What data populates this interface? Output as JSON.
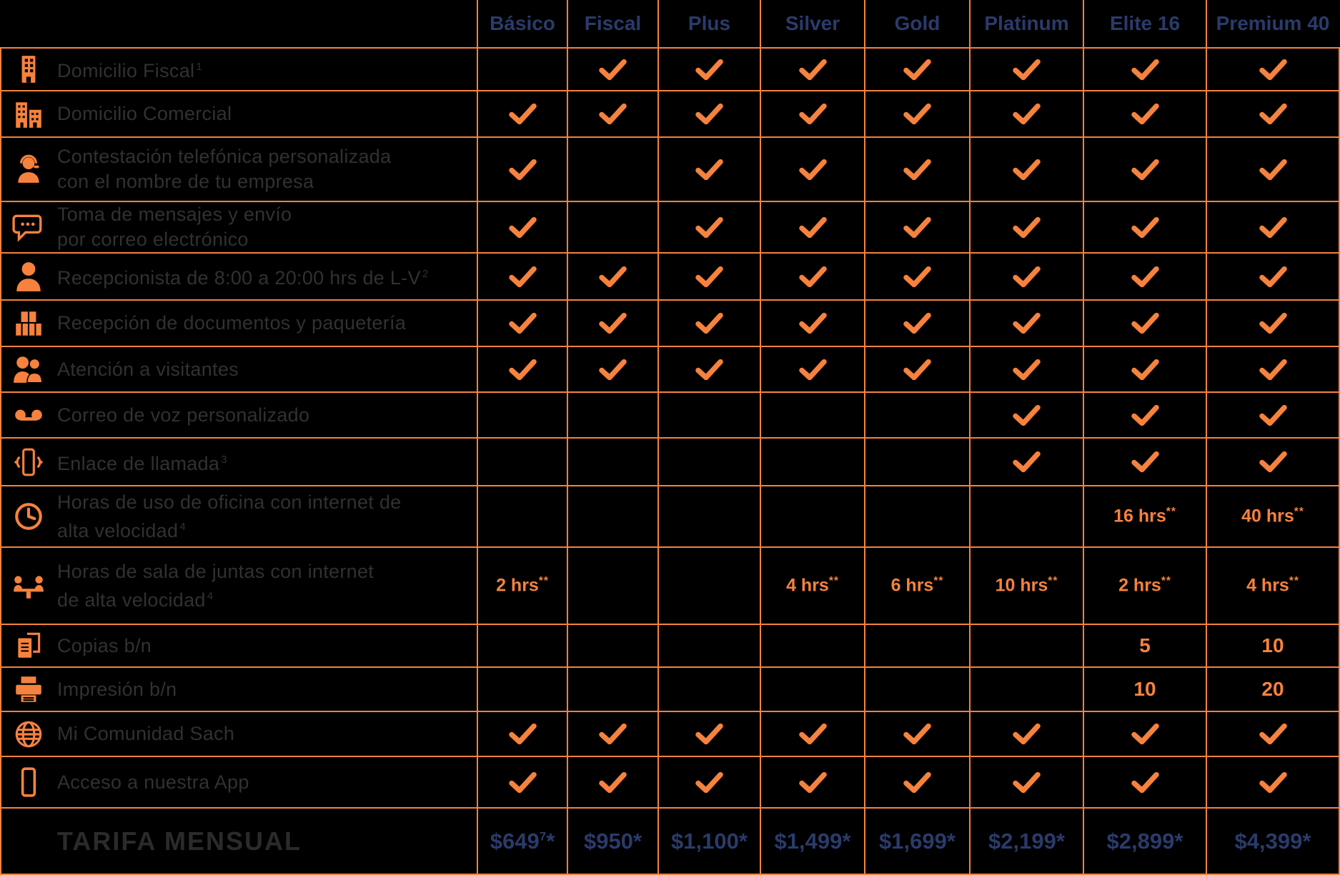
{
  "colors": {
    "accent_orange": "#F6823D",
    "header_navy": "#2A3B6B",
    "label_gray": "#313131",
    "tarifa_gray": "#2B2B2B",
    "background": "#000000"
  },
  "table": {
    "plans": [
      "Básico",
      "Fiscal",
      "Plus",
      "Silver",
      "Gold",
      "Platinum",
      "Elite 16",
      "Premium 40"
    ],
    "rows": [
      {
        "icon": "building-icon",
        "lines": [
          "Domicilio Fiscal"
        ],
        "sup": "1",
        "cells": [
          "",
          "check",
          "check",
          "check",
          "check",
          "check",
          "check",
          "check"
        ]
      },
      {
        "icon": "city-buildings-icon",
        "lines": [
          "Domicilio Comercial"
        ],
        "cells": [
          "check",
          "check",
          "check",
          "check",
          "check",
          "check",
          "check",
          "check"
        ]
      },
      {
        "icon": "operator-headset-icon",
        "lines": [
          "Contestación telefónica personalizada",
          "con el nombre de tu empresa"
        ],
        "cells": [
          "check",
          "",
          "check",
          "check",
          "check",
          "check",
          "check",
          "check"
        ]
      },
      {
        "icon": "chat-message-icon",
        "lines": [
          "Toma de mensajes y envío",
          "por correo electrónico"
        ],
        "cells": [
          "check",
          "",
          "check",
          "check",
          "check",
          "check",
          "check",
          "check"
        ]
      },
      {
        "icon": "receptionist-icon",
        "lines": [
          "Recepcionista de 8:00 a 20:00 hrs de L-V"
        ],
        "sup": "2",
        "cells": [
          "check",
          "check",
          "check",
          "check",
          "check",
          "check",
          "check",
          "check"
        ]
      },
      {
        "icon": "packages-icon",
        "lines": [
          "Recepción de documentos y paquetería"
        ],
        "cells": [
          "check",
          "check",
          "check",
          "check",
          "check",
          "check",
          "check",
          "check"
        ]
      },
      {
        "icon": "visitors-icon",
        "lines": [
          "Atención a visitantes"
        ],
        "cells": [
          "check",
          "check",
          "check",
          "check",
          "check",
          "check",
          "check",
          "check"
        ]
      },
      {
        "icon": "voicemail-icon",
        "lines": [
          "Correo de voz personalizado"
        ],
        "cells": [
          "",
          "",
          "",
          "",
          "",
          "check",
          "check",
          "check"
        ]
      },
      {
        "icon": "phone-vibrate-icon",
        "lines": [
          "Enlace de llamada"
        ],
        "sup": "3",
        "cells": [
          "",
          "",
          "",
          "",
          "",
          "check",
          "check",
          "check"
        ]
      },
      {
        "icon": "clock-icon",
        "lines": [
          "Horas de uso de oficina con internet de",
          "alta velocidad"
        ],
        "sup": "4",
        "cells": [
          "",
          "",
          "",
          "",
          "",
          "",
          "16 hrs**",
          "40 hrs**"
        ]
      },
      {
        "icon": "meeting-room-icon",
        "lines": [
          "Horas de sala de juntas con internet",
          "de alta velocidad"
        ],
        "sup": "4",
        "cells": [
          "2 hrs**",
          "",
          "",
          "4 hrs**",
          "6 hrs**",
          "10 hrs**",
          "2 hrs**",
          "4 hrs**"
        ]
      },
      {
        "icon": "copies-icon",
        "lines": [
          "Copias b/n"
        ],
        "cells": [
          "",
          "",
          "",
          "",
          "",
          "",
          "5",
          "10"
        ]
      },
      {
        "icon": "printer-icon",
        "lines": [
          "Impresión b/n"
        ],
        "cells": [
          "",
          "",
          "",
          "",
          "",
          "",
          "10",
          "20"
        ]
      },
      {
        "icon": "globe-icon",
        "lines": [
          "Mi Comunidad Sach"
        ],
        "cells": [
          "check",
          "check",
          "check",
          "check",
          "check",
          "check",
          "check",
          "check"
        ]
      },
      {
        "icon": "smartphone-icon",
        "lines": [
          "Acceso a nuestra App"
        ],
        "cells": [
          "check",
          "check",
          "check",
          "check",
          "check",
          "check",
          "check",
          "check"
        ]
      }
    ],
    "footer": {
      "label": "TARIFA MENSUAL",
      "prices": [
        {
          "amount": "$649",
          "note": "7",
          "asterisk": "*"
        },
        {
          "amount": "$950",
          "asterisk": "*"
        },
        {
          "amount": "$1,100",
          "asterisk": "*"
        },
        {
          "amount": "$1,499",
          "asterisk": "*"
        },
        {
          "amount": "$1,699",
          "asterisk": "*"
        },
        {
          "amount": "$2,199",
          "asterisk": "*"
        },
        {
          "amount": "$2,899",
          "asterisk": "*"
        },
        {
          "amount": "$4,399",
          "asterisk": "*"
        }
      ]
    }
  }
}
